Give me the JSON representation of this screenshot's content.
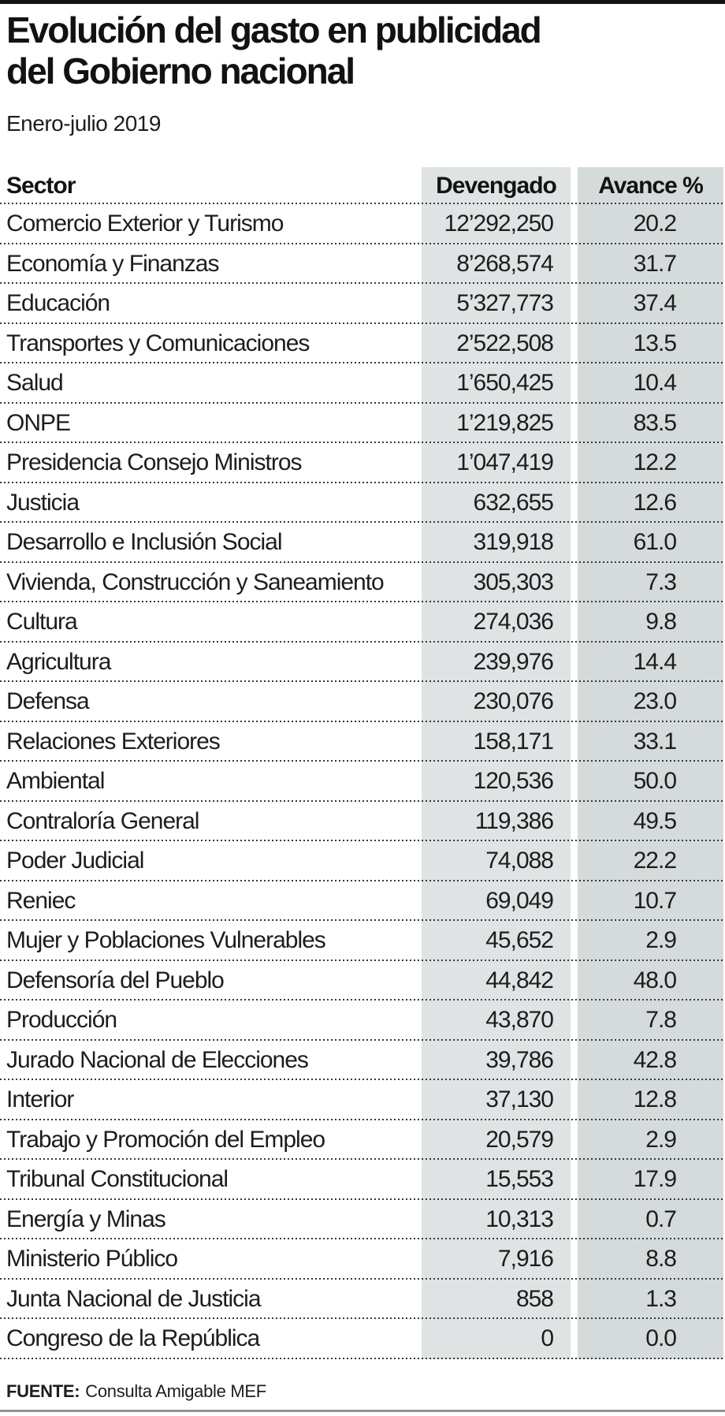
{
  "header": {
    "title_line1": "Evolución del gasto en publicidad",
    "title_line2": "del Gobierno nacional",
    "subtitle": "Enero-julio 2019"
  },
  "table": {
    "col_sector": "Sector",
    "col_devengado": "Devengado",
    "col_avance": "Avance %",
    "rows": [
      {
        "sector": "Comercio Exterior y Turismo",
        "devengado": "12’292,250",
        "avance": "20.2"
      },
      {
        "sector": "Economía y Finanzas",
        "devengado": "8’268,574",
        "avance": "31.7"
      },
      {
        "sector": "Educación",
        "devengado": "5’327,773",
        "avance": "37.4"
      },
      {
        "sector": "Transportes y Comunicaciones",
        "devengado": "2’522,508",
        "avance": "13.5"
      },
      {
        "sector": "Salud",
        "devengado": "1’650,425",
        "avance": "10.4"
      },
      {
        "sector": "ONPE",
        "devengado": "1’219,825",
        "avance": "83.5"
      },
      {
        "sector": "Presidencia Consejo Ministros",
        "devengado": "1’047,419",
        "avance": "12.2"
      },
      {
        "sector": "Justicia",
        "devengado": "632,655",
        "avance": "12.6"
      },
      {
        "sector": "Desarrollo e Inclusión Social",
        "devengado": "319,918",
        "avance": "61.0"
      },
      {
        "sector": "Vivienda, Construcción y Saneamiento",
        "devengado": "305,303",
        "avance": "7.3"
      },
      {
        "sector": "Cultura",
        "devengado": "274,036",
        "avance": "9.8"
      },
      {
        "sector": "Agricultura",
        "devengado": "239,976",
        "avance": "14.4"
      },
      {
        "sector": "Defensa",
        "devengado": "230,076",
        "avance": "23.0"
      },
      {
        "sector": "Relaciones Exteriores",
        "devengado": "158,171",
        "avance": "33.1"
      },
      {
        "sector": "Ambiental",
        "devengado": "120,536",
        "avance": "50.0"
      },
      {
        "sector": "Contraloría General",
        "devengado": "119,386",
        "avance": "49.5"
      },
      {
        "sector": "Poder Judicial",
        "devengado": "74,088",
        "avance": "22.2"
      },
      {
        "sector": "Reniec",
        "devengado": "69,049",
        "avance": "10.7"
      },
      {
        "sector": "Mujer y Poblaciones Vulnerables",
        "devengado": "45,652",
        "avance": "2.9"
      },
      {
        "sector": "Defensoría del Pueblo",
        "devengado": "44,842",
        "avance": "48.0"
      },
      {
        "sector": "Producción",
        "devengado": "43,870",
        "avance": "7.8"
      },
      {
        "sector": "Jurado Nacional de Elecciones",
        "devengado": "39,786",
        "avance": "42.8"
      },
      {
        "sector": "Interior",
        "devengado": "37,130",
        "avance": "12.8"
      },
      {
        "sector": "Trabajo y Promoción del Empleo",
        "devengado": "20,579",
        "avance": "2.9"
      },
      {
        "sector": "Tribunal Constitucional",
        "devengado": "15,553",
        "avance": "17.9"
      },
      {
        "sector": "Energía y Minas",
        "devengado": "10,313",
        "avance": "0.7"
      },
      {
        "sector": "Ministerio Público",
        "devengado": "7,916",
        "avance": "8.8"
      },
      {
        "sector": "Junta Nacional de Justicia",
        "devengado": "858",
        "avance": "1.3"
      },
      {
        "sector": "Congreso de la República",
        "devengado": "0",
        "avance": "0.0"
      }
    ]
  },
  "footer": {
    "source_label": "FUENTE:",
    "source_text": "Consulta Amigable MEF"
  },
  "colors": {
    "devengado_band": "#dfe3e4",
    "avance_band": "#d5dadb",
    "top_bar": "#121212",
    "bottom_line": "#8e9192",
    "dotted_rule": "#383838",
    "text": "#1d1d1d"
  },
  "chart_data": {
    "type": "table",
    "title": "Evolución del gasto en publicidad del Gobierno nacional",
    "subtitle": "Enero-julio 2019",
    "columns": [
      "Sector",
      "Devengado",
      "Avance %"
    ],
    "categories": [
      "Comercio Exterior y Turismo",
      "Economía y Finanzas",
      "Educación",
      "Transportes y Comunicaciones",
      "Salud",
      "ONPE",
      "Presidencia Consejo Ministros",
      "Justicia",
      "Desarrollo e Inclusión Social",
      "Vivienda, Construcción y Saneamiento",
      "Cultura",
      "Agricultura",
      "Defensa",
      "Relaciones Exteriores",
      "Ambiental",
      "Contraloría General",
      "Poder Judicial",
      "Reniec",
      "Mujer y Poblaciones Vulnerables",
      "Defensoría del Pueblo",
      "Producción",
      "Jurado Nacional de Elecciones",
      "Interior",
      "Trabajo y Promoción del Empleo",
      "Tribunal Constitucional",
      "Energía y Minas",
      "Ministerio Público",
      "Junta Nacional de Justicia",
      "Congreso de la República"
    ],
    "series": [
      {
        "name": "Devengado",
        "values": [
          12292250,
          8268574,
          5327773,
          2522508,
          1650425,
          1219825,
          1047419,
          632655,
          319918,
          305303,
          274036,
          239976,
          230076,
          158171,
          120536,
          119386,
          74088,
          69049,
          45652,
          44842,
          43870,
          39786,
          37130,
          20579,
          15553,
          10313,
          7916,
          858,
          0
        ]
      },
      {
        "name": "Avance %",
        "values": [
          20.2,
          31.7,
          37.4,
          13.5,
          10.4,
          83.5,
          12.2,
          12.6,
          61.0,
          7.3,
          9.8,
          14.4,
          23.0,
          33.1,
          50.0,
          49.5,
          22.2,
          10.7,
          2.9,
          48.0,
          7.8,
          42.8,
          12.8,
          2.9,
          17.9,
          0.7,
          8.8,
          1.3,
          0.0
        ]
      }
    ],
    "source": "FUENTE: Consulta Amigable MEF"
  }
}
